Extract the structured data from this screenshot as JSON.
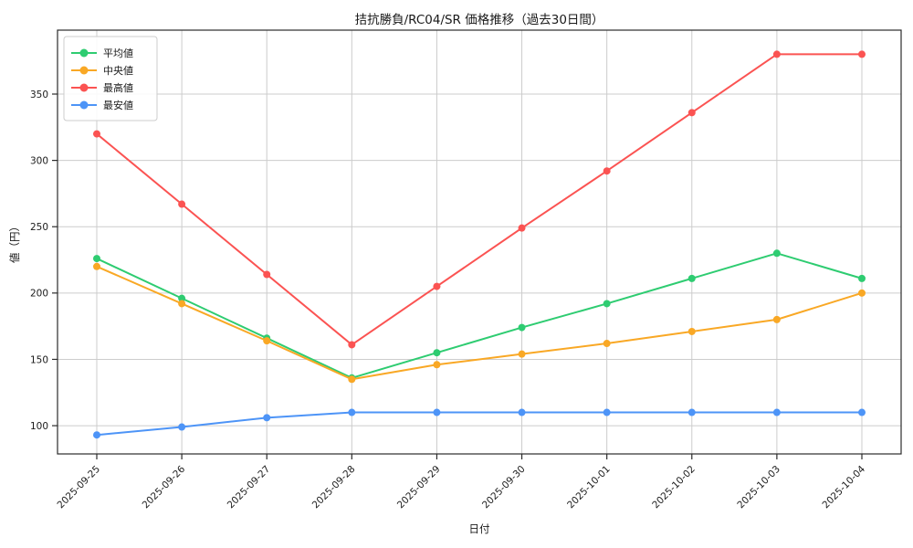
{
  "chart_data": {
    "type": "line",
    "title": "拮抗勝負/RC04/SR 価格推移（過去30日間）",
    "xlabel": "日付",
    "ylabel": "値（円）",
    "categories": [
      "2025-09-25",
      "2025-09-26",
      "2025-09-27",
      "2025-09-28",
      "2025-09-29",
      "2025-09-30",
      "2025-10-01",
      "2025-10-02",
      "2025-10-03",
      "2025-10-04"
    ],
    "series": [
      {
        "key": "average",
        "name": "平均値",
        "color": "#2ecc71",
        "values": [
          226,
          196,
          166,
          136,
          155,
          174,
          192,
          211,
          230,
          211
        ]
      },
      {
        "key": "median",
        "name": "中央値",
        "color": "#f9a825",
        "values": [
          220,
          192,
          164,
          135,
          146,
          154,
          162,
          171,
          180,
          200
        ]
      },
      {
        "key": "highest",
        "name": "最高値",
        "color": "#fb5352",
        "values": [
          320,
          267,
          214,
          161,
          205,
          249,
          292,
          336,
          380,
          380
        ]
      },
      {
        "key": "lowest",
        "name": "最安値",
        "color": "#4d94f7",
        "values": [
          93,
          99,
          106,
          110,
          110,
          110,
          110,
          110,
          110,
          110
        ]
      }
    ],
    "ylim": [
      78.7,
      398.2
    ],
    "yticks": [
      100,
      150,
      200,
      250,
      300,
      350
    ],
    "grid": true,
    "legend_position": "upper-left",
    "grid_color": "#cccccc",
    "spine_color": "#2b2b2b",
    "background": "#ffffff"
  }
}
